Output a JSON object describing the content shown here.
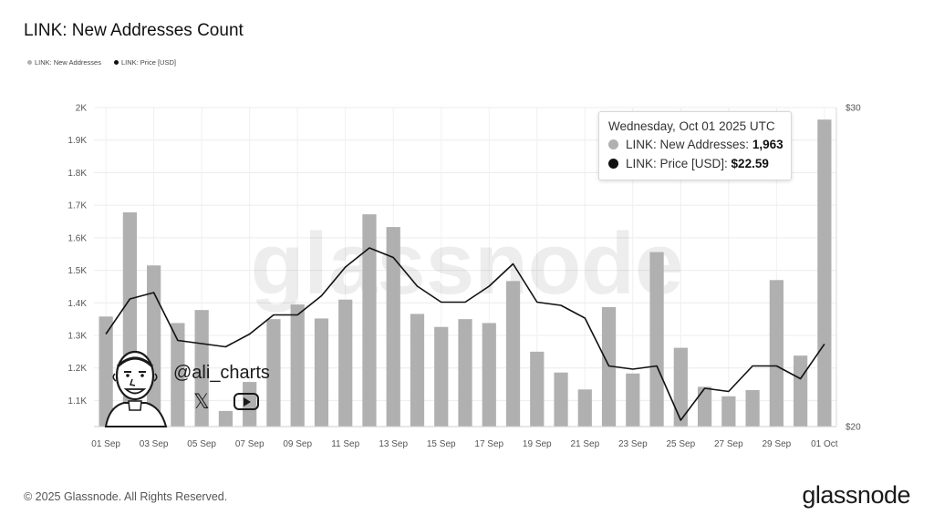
{
  "header": {
    "title": "LINK: New Addresses Count"
  },
  "legend": {
    "items": [
      {
        "label": "LINK: New Addresses",
        "color": "#b0b0b0"
      },
      {
        "label": "LINK: Price [USD]",
        "color": "#111111"
      }
    ]
  },
  "tooltip": {
    "date": "Wednesday, Oct 01 2025 UTC",
    "row1_label": "LINK: New Addresses:",
    "row1_value": "1,963",
    "row2_label": "LINK: Price [USD]:",
    "row2_value": "$22.59"
  },
  "watermark": {
    "text": "glassnode"
  },
  "author": {
    "handle": "@ali_charts",
    "x_icon": "𝕏"
  },
  "footer": {
    "copyright": "© 2025 Glassnode. All Rights Reserved.",
    "brand": "glassnode"
  },
  "chart_data": {
    "type": "bar",
    "title": "LINK: New Addresses Count",
    "x_tick_labels": [
      "01 Sep",
      "03 Sep",
      "05 Sep",
      "07 Sep",
      "09 Sep",
      "11 Sep",
      "13 Sep",
      "15 Sep",
      "17 Sep",
      "19 Sep",
      "21 Sep",
      "23 Sep",
      "25 Sep",
      "27 Sep",
      "29 Sep",
      "01 Oct"
    ],
    "y_left_tick_labels": [
      "1.1K",
      "1.2K",
      "1.3K",
      "1.4K",
      "1.5K",
      "1.6K",
      "1.7K",
      "1.8K",
      "1.9K",
      "2K"
    ],
    "y_left_ticks": [
      1100,
      1200,
      1300,
      1400,
      1500,
      1600,
      1700,
      1800,
      1900,
      2000
    ],
    "y_left_range": [
      1020,
      2000
    ],
    "y_right_tick_labels": [
      "$20",
      "$30"
    ],
    "y_right_ticks": [
      20,
      30
    ],
    "y_right_range": [
      20,
      30
    ],
    "grid": true,
    "legend_position": "top-left",
    "categories": [
      "01 Sep",
      "02 Sep",
      "03 Sep",
      "04 Sep",
      "05 Sep",
      "06 Sep",
      "07 Sep",
      "08 Sep",
      "09 Sep",
      "10 Sep",
      "11 Sep",
      "12 Sep",
      "13 Sep",
      "14 Sep",
      "15 Sep",
      "16 Sep",
      "17 Sep",
      "18 Sep",
      "19 Sep",
      "20 Sep",
      "21 Sep",
      "22 Sep",
      "23 Sep",
      "24 Sep",
      "25 Sep",
      "26 Sep",
      "27 Sep",
      "28 Sep",
      "29 Sep",
      "30 Sep",
      "01 Oct"
    ],
    "series": [
      {
        "name": "LINK: New Addresses",
        "type": "bar",
        "axis": "left",
        "color": "#b0b0b0",
        "values": [
          1358,
          1678,
          1515,
          1338,
          1378,
          1068,
          1157,
          1350,
          1395,
          1352,
          1410,
          1672,
          1633,
          1366,
          1326,
          1350,
          1338,
          1467,
          1250,
          1186,
          1134,
          1387,
          1183,
          1556,
          1262,
          1142,
          1113,
          1132,
          1470,
          1238,
          1963
        ]
      },
      {
        "name": "LINK: Price [USD]",
        "type": "line",
        "axis": "right",
        "color": "#111111",
        "values": [
          22.9,
          24.0,
          24.2,
          22.7,
          22.6,
          22.5,
          22.9,
          23.5,
          23.5,
          24.1,
          25.0,
          25.6,
          25.3,
          24.4,
          23.9,
          23.9,
          24.4,
          25.1,
          23.9,
          23.8,
          23.4,
          21.9,
          21.8,
          21.9,
          20.2,
          21.2,
          21.1,
          21.9,
          21.9,
          21.5,
          22.59
        ]
      }
    ]
  }
}
